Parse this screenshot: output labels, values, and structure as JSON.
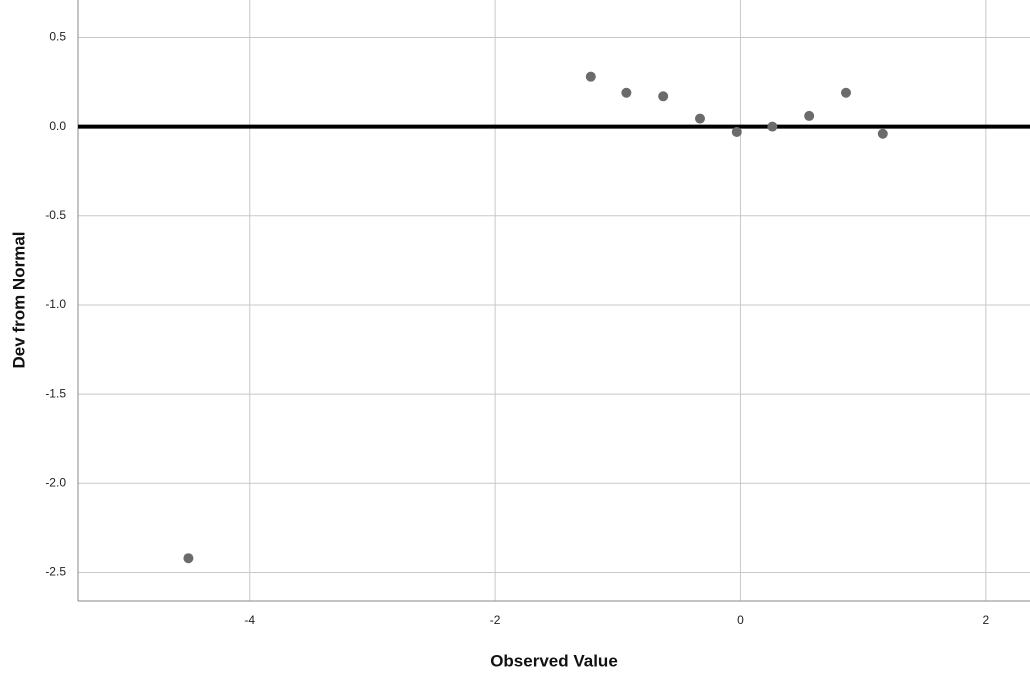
{
  "chart_data": {
    "type": "scatter",
    "x_label": "Observed Value",
    "y_label": "Dev from Normal",
    "x": [
      -4.5,
      -1.22,
      -0.93,
      -0.63,
      -0.33,
      -0.03,
      0.26,
      0.56,
      0.86,
      1.16
    ],
    "values": [
      -2.42,
      0.28,
      0.19,
      0.17,
      0.045,
      -0.03,
      0.0,
      0.06,
      0.19,
      -0.04
    ],
    "color": "#6b6b6b",
    "xlim": [
      -5.4,
      2.36
    ],
    "ylim": [
      -2.66,
      0.71
    ],
    "xticks": [
      -4,
      -2,
      0,
      2
    ],
    "yticks": [
      0.5,
      {
        "value": 0,
        "label": "0.0"
      },
      -0.5,
      {
        "value": -1,
        "label": "-1.0"
      },
      -1.5,
      {
        "value": -2,
        "label": "-2.0"
      },
      -2.5
    ],
    "reference_line": 0,
    "grid": true
  }
}
